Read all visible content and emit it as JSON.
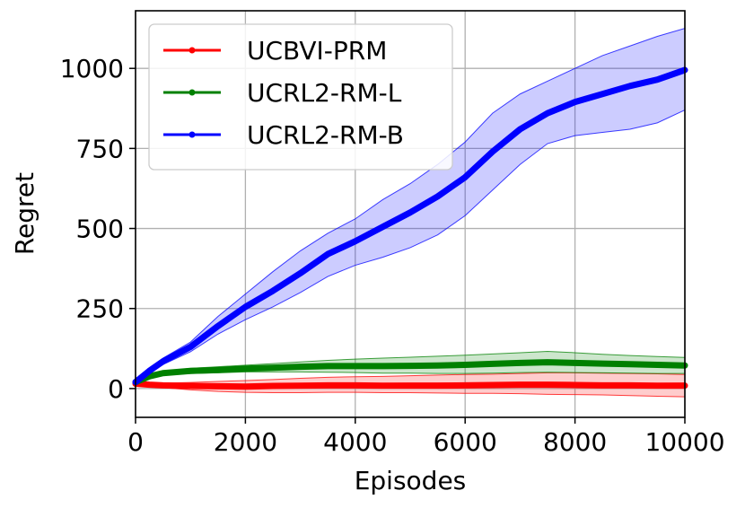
{
  "chart_data": {
    "type": "line",
    "xlabel": "Episodes",
    "ylabel": "Regret",
    "xlim": [
      0,
      10000
    ],
    "ylim": [
      -90,
      1180
    ],
    "x_ticks": [
      0,
      2000,
      4000,
      6000,
      8000,
      10000
    ],
    "x_tick_labels": [
      "0",
      "2000",
      "4000",
      "6000",
      "8000",
      "10000"
    ],
    "y_ticks": [
      0,
      250,
      500,
      750,
      1000
    ],
    "y_tick_labels": [
      "0",
      "250",
      "500",
      "750",
      "1000"
    ],
    "grid": true,
    "legend_position": "top-left",
    "x": [
      0,
      250,
      500,
      1000,
      1500,
      2000,
      2500,
      3000,
      3500,
      4000,
      4500,
      5000,
      5500,
      6000,
      6500,
      7000,
      7500,
      8000,
      8500,
      9000,
      9500,
      10000
    ],
    "series": [
      {
        "name": "UCBVI-PRM",
        "color": "#ff0000",
        "values": [
          15,
          12,
          10,
          8,
          7,
          6,
          8,
          9,
          10,
          10,
          9,
          9,
          9,
          10,
          11,
          12,
          12,
          11,
          10,
          10,
          9,
          9
        ],
        "lower": [
          15,
          8,
          3,
          -4,
          -9,
          -12,
          -13,
          -13,
          -12,
          -12,
          -13,
          -13,
          -14,
          -15,
          -15,
          -16,
          -18,
          -19,
          -20,
          -22,
          -24,
          -26
        ],
        "upper": [
          15,
          16,
          17,
          19,
          22,
          25,
          28,
          32,
          35,
          37,
          38,
          40,
          42,
          44,
          45,
          47,
          49,
          49,
          48,
          47,
          46,
          44
        ]
      },
      {
        "name": "UCRL2-RM-L",
        "color": "#008000",
        "values": [
          20,
          38,
          48,
          55,
          58,
          62,
          65,
          68,
          70,
          70,
          70,
          71,
          72,
          74,
          77,
          80,
          82,
          80,
          78,
          76,
          74,
          72
        ],
        "lower": [
          20,
          33,
          42,
          47,
          49,
          52,
          52,
          52,
          51,
          50,
          48,
          48,
          47,
          47,
          48,
          50,
          51,
          50,
          49,
          48,
          47,
          47
        ],
        "upper": [
          20,
          43,
          54,
          63,
          68,
          73,
          78,
          83,
          88,
          92,
          95,
          98,
          101,
          104,
          108,
          112,
          116,
          112,
          107,
          103,
          100,
          97
        ]
      },
      {
        "name": "UCRL2-RM-B",
        "color": "#0000ff",
        "values": [
          20,
          55,
          85,
          130,
          195,
          255,
          305,
          360,
          420,
          460,
          505,
          550,
          600,
          660,
          740,
          810,
          860,
          895,
          920,
          945,
          965,
          995
        ],
        "lower": [
          20,
          50,
          75,
          115,
          170,
          215,
          255,
          300,
          350,
          385,
          410,
          440,
          480,
          540,
          620,
          700,
          765,
          790,
          800,
          810,
          830,
          870
        ],
        "upper": [
          20,
          60,
          95,
          145,
          225,
          295,
          365,
          430,
          485,
          530,
          590,
          640,
          700,
          770,
          860,
          920,
          960,
          1000,
          1040,
          1070,
          1100,
          1125
        ]
      }
    ]
  }
}
